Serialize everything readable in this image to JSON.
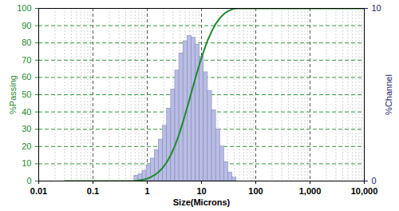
{
  "chart_data": {
    "type": "histogram",
    "xlabel": "Size(Microns)",
    "ylabel": "%Passing",
    "y2label": "%Channel",
    "log": "x",
    "grid": true,
    "xlim": [
      0.01,
      10000
    ],
    "xticks": [
      0.01,
      0.1,
      1,
      10,
      100,
      {
        "value": 1000,
        "label": "1,000"
      },
      {
        "value": 10000,
        "label": "10,000"
      }
    ],
    "ylim": [
      0,
      100
    ],
    "yticks": [
      0,
      10,
      20,
      30,
      40,
      50,
      60,
      70,
      80,
      90,
      100
    ],
    "y2lim": [
      0,
      10
    ],
    "y2ticks": [
      0,
      10
    ],
    "bins": [
      0.578,
      0.688,
      0.818,
      0.972,
      1.156,
      1.375,
      1.635,
      1.945,
      2.312,
      2.75,
      3.27,
      3.889,
      4.625,
      5.5,
      6.541,
      7.778,
      9.25,
      11,
      13.08,
      15.56,
      18.5,
      22,
      26.16,
      31.11,
      37,
      44
    ],
    "series": [
      {
        "type": "bar",
        "axis": "y2",
        "color": "#b9bde3",
        "values": [
          0.3,
          0.4,
          0.6,
          0.9,
          1.3,
          1.8,
          2.4,
          3.2,
          4.2,
          5.3,
          6.4,
          7.4,
          8.1,
          8.4,
          8.3,
          7.9,
          7.2,
          6.3,
          5.2,
          4.1,
          3.0,
          2.0,
          1.1,
          0.5,
          0.2
        ]
      },
      {
        "type": "line",
        "color": "#1f8a2e",
        "x": [
          0.03,
          0.578,
          0.688,
          0.818,
          0.972,
          1.156,
          1.375,
          1.635,
          1.945,
          2.312,
          2.75,
          3.27,
          3.889,
          4.625,
          5.5,
          6.541,
          7.778,
          9.25,
          11,
          13.08,
          15.56,
          18.5,
          22,
          26.16,
          31.11,
          37,
          44,
          10000
        ],
        "values": [
          0,
          0,
          0.3,
          0.7,
          1.3,
          2.2,
          3.5,
          5.3,
          7.8,
          11.1,
          15.4,
          20.8,
          27.3,
          34.8,
          43.0,
          51.5,
          60.0,
          68.0,
          75.3,
          81.7,
          87.0,
          91.3,
          94.5,
          96.9,
          98.5,
          99.5,
          100,
          100
        ]
      }
    ]
  }
}
